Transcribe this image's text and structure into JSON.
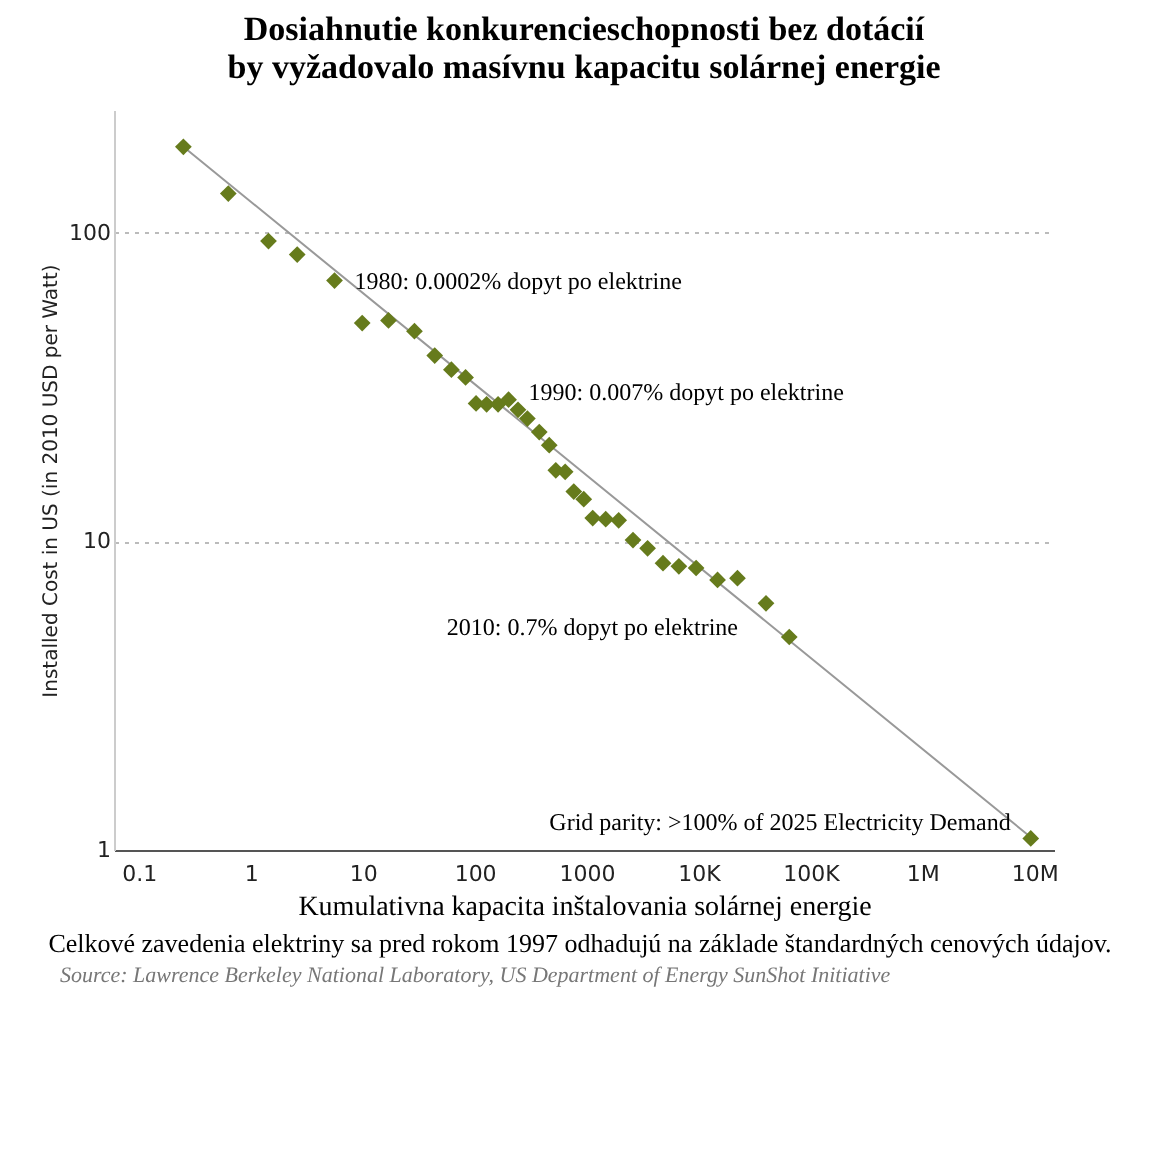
{
  "chart_data": {
    "type": "scatter",
    "title": "Dosiahnutie konkurencieschopnosti bez dotácií by vyžadovalo masívnu kapacitu solárnej energie",
    "xlabel": "Kumulativna kapacita inštalovania solárnej energie",
    "ylabel": "Installed Cost in US (in 2010 USD per Watt)",
    "log": "xy",
    "grid": "y",
    "marker": "diamond",
    "xlim": [
      0.06,
      15000000
    ],
    "ylim": [
      1,
      250
    ],
    "xticks": [
      0.1,
      1,
      10,
      100,
      {
        "value": 1000,
        "label": "1000"
      },
      {
        "value": 10000,
        "label": "10K"
      },
      {
        "value": 100000,
        "label": "100K"
      },
      {
        "value": 1000000,
        "label": "1M"
      },
      {
        "value": 10000000,
        "label": "10M"
      }
    ],
    "yticks": [
      1,
      10,
      100
    ],
    "series": [
      {
        "color": "#667b1c",
        "x": [
          0.25,
          0.63,
          1.44,
          2.6,
          5.6,
          9.9,
          17,
          29,
          44,
          62,
          83,
          103,
          128,
          162,
          201,
          244,
          296,
          378,
          464,
          531,
          644,
          769,
          944,
          1135,
          1483,
          1936,
          2600,
          3510,
          4820,
          6680,
          9520,
          14800,
          22300,
          40100,
          64700,
          9300000
        ],
        "values": [
          190,
          134,
          94,
          85,
          70,
          51,
          52,
          48,
          40,
          36,
          34,
          28,
          27.8,
          27.8,
          28.8,
          26.7,
          25,
          22.6,
          20.5,
          17,
          16.8,
          14.5,
          13.7,
          11.9,
          11.8,
          11.7,
          10.1,
          9.5,
          8.5,
          8.3,
          8.2,
          7.5,
          7.6,
          6.3,
          4.9,
          1.09
        ]
      },
      {
        "type": "line",
        "color": "#999999",
        "line_style": "solid",
        "marker": "none",
        "x": [
          0.25,
          9300000
        ],
        "values": [
          190,
          1.1
        ]
      }
    ],
    "annotations": [
      {
        "text": "1980: 0.0002% dopyt po elektrine",
        "x": 5.6,
        "y": 70
      },
      {
        "text": "1990: 0.007% dopyt po elektrine",
        "x": 201,
        "y": 28.8
      },
      {
        "text": "2010: 0.7% dopyt po elektrine",
        "x": 40100,
        "y": 6.3
      },
      {
        "text": "Grid parity: >100% of 2025 Electricity Demand",
        "x": 9300000,
        "y": 1.09
      },
      "Celkové zavedenia elektriny sa pred rokom 1997 odhadujú na základe štandardných cenových údajov.",
      "Source: Lawrence Berkeley National Laboratory, US Department of Energy SunShot Initiative"
    ]
  }
}
